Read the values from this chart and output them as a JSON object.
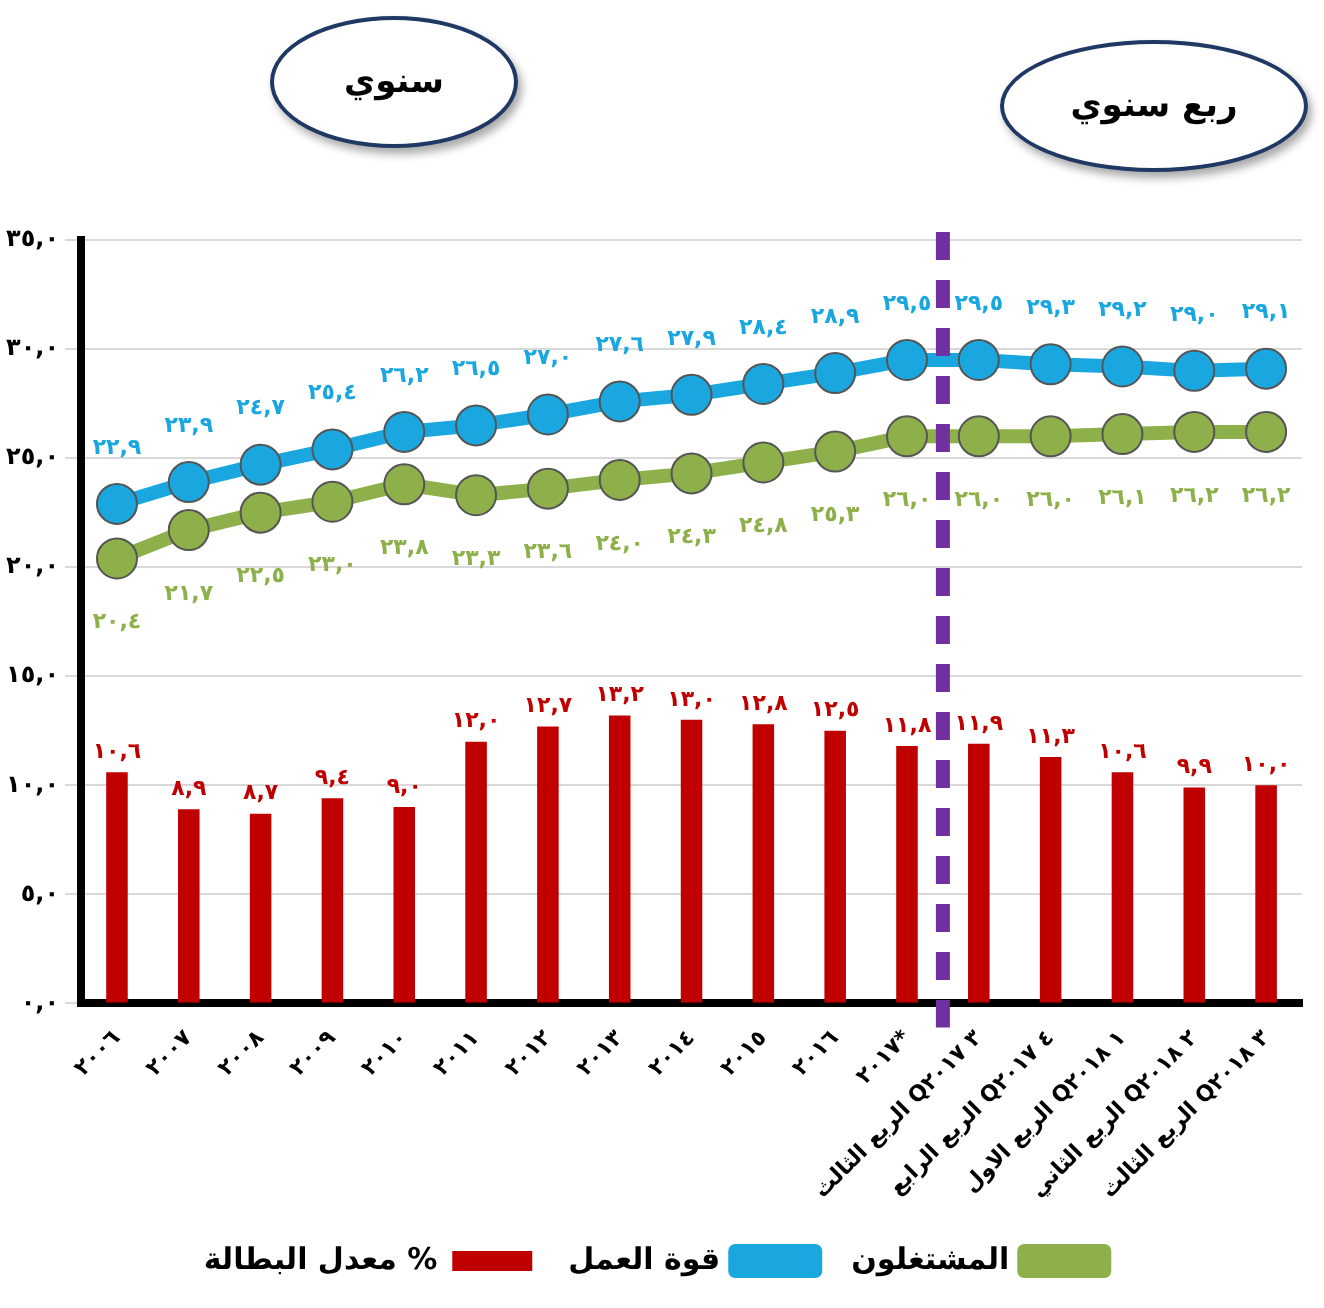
{
  "chart_data": {
    "type": "bar",
    "categories": [
      "٢٠٠٦",
      "٢٠٠٧",
      "٢٠٠٨",
      "٢٠٠٩",
      "٢٠١٠",
      "٢٠١١",
      "٢٠١٢",
      "٢٠١٣",
      "٢٠١٤",
      "٢٠١٥",
      "٢٠١٦",
      "٢٠١٧*",
      "الربع الثالث Q٣ ٢٠١٧",
      "الربع الرابع Q٤ ٢٠١٧",
      "الربع الاول Q١ ٢٠١٨",
      "الربع الثاني Q٢ ٢٠١٨",
      "الربع الثالث Q٣ ٢٠١٨"
    ],
    "series": [
      {
        "name": "المشتغلون",
        "type": "line",
        "color": "#8db04a",
        "values": [
          20.4,
          21.7,
          22.5,
          23.0,
          23.8,
          23.3,
          23.6,
          24.0,
          24.3,
          24.8,
          25.3,
          26.0,
          26.0,
          26.0,
          26.1,
          26.2,
          26.2
        ],
        "value_labels": [
          "٢٠,٤",
          "٢١,٧",
          "٢٢,٥",
          "٢٣,٠",
          "٢٣,٨",
          "٢٣,٣",
          "٢٣,٦",
          "٢٤,٠",
          "٢٤,٣",
          "٢٤,٨",
          "٢٥,٣",
          "٢٦,٠",
          "٢٦,٠",
          "٢٦,٠",
          "٢٦,١",
          "٢٦,٢",
          "٢٦,٢"
        ]
      },
      {
        "name": "قوة العمل",
        "type": "line",
        "color": "#1aa7e0",
        "values": [
          22.9,
          23.9,
          24.7,
          25.4,
          26.2,
          26.5,
          27.0,
          27.6,
          27.9,
          28.4,
          28.9,
          29.5,
          29.5,
          29.3,
          29.2,
          29.0,
          29.1
        ],
        "value_labels": [
          "٢٢,٩",
          "٢٣,٩",
          "٢٤,٧",
          "٢٥,٤",
          "٢٦,٢",
          "٢٦,٥",
          "٢٧,٠",
          "٢٧,٦",
          "٢٧,٩",
          "٢٨,٤",
          "٢٨,٩",
          "٢٩,٥",
          "٢٩,٥",
          "٢٩,٣",
          "٢٩,٢",
          "٢٩,٠",
          "٢٩,١"
        ]
      },
      {
        "name": "معدل البطالة %",
        "color": "#c00000",
        "values": [
          10.6,
          8.9,
          8.7,
          9.4,
          9.0,
          12.0,
          12.7,
          13.2,
          13.0,
          12.8,
          12.5,
          11.8,
          11.9,
          11.3,
          10.6,
          9.9,
          10.0
        ],
        "value_labels": [
          "١٠,٦",
          "٨,٩",
          "٨,٧",
          "٩,٤",
          "٩,٠",
          "١٢,٠",
          "١٢,٧",
          "١٣,٢",
          "١٣,٠",
          "١٢,٨",
          "١٢,٥",
          "١١,٨",
          "١١,٩",
          "١١,٣",
          "١٠,٦",
          "٩,٩",
          "١٠,٠"
        ]
      }
    ],
    "ylim": [
      0,
      35
    ],
    "yticks": [
      {
        "value": 0,
        "label": "٠,٠"
      },
      {
        "value": 5,
        "label": "٥,٠"
      },
      {
        "value": 10,
        "label": "١٠,٠"
      },
      {
        "value": 15,
        "label": "١٥,٠"
      },
      {
        "value": 20,
        "label": "٢٠,٠"
      },
      {
        "value": 25,
        "label": "٢٥,٠"
      },
      {
        "value": 30,
        "label": "٣٠,٠"
      },
      {
        "value": 35,
        "label": "٣٥,٠"
      }
    ],
    "grid": "y",
    "legend": "bottom",
    "marker": "circle",
    "ref_lines": [
      {
        "axis": "x",
        "value": "الربع الثالث Q٣ ٢٠١٧",
        "color": "#7030a0",
        "line_style": "dashed"
      }
    ],
    "annotations": [
      "سنوي",
      "ربع سنوي"
    ]
  }
}
